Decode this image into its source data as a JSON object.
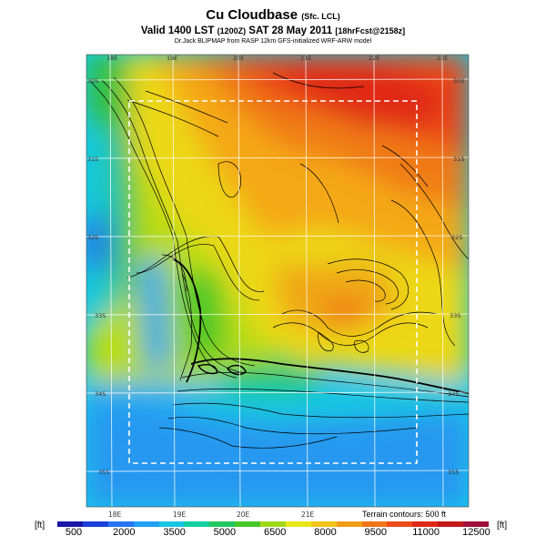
{
  "header": {
    "title": "Cu Cloudbase",
    "title_suffix": "(Sfc. LCL)",
    "subtitle_main": "Valid 1400 LST",
    "subtitle_utc": "(1200Z)",
    "subtitle_date": "SAT 28 May 2011",
    "subtitle_forecast": "[18hrFcst@2158z]",
    "credit": "Dr.Jack BLIPMAP from RASP 12km GFS-initialized WRF-ARW model"
  },
  "map": {
    "top_longitudes": [
      "18E",
      "19E",
      "20E",
      "21E",
      "22E",
      "23E"
    ],
    "bottom_longitudes": [
      "18E",
      "19E",
      "20E",
      "21E"
    ],
    "left_latitudes": [
      "30S",
      "31S",
      "32S",
      "33S",
      "34S",
      "35S"
    ],
    "right_latitudes": [
      "30S",
      "31S",
      "32S",
      "33S",
      "34S",
      "35S"
    ],
    "terrain_note": "Terrain contours: 500 ft"
  },
  "legend": {
    "unit_left": "[ft]",
    "unit_right": "[ft]",
    "tick_labels": [
      "500",
      "2000",
      "3500",
      "5000",
      "6500",
      "8000",
      "9500",
      "11000",
      "12500"
    ],
    "colors": [
      "#1818a8",
      "#1c40dc",
      "#2874f0",
      "#20a0f4",
      "#18c4e0",
      "#10d0a0",
      "#20c860",
      "#48c828",
      "#a0d818",
      "#e8e818",
      "#f0c418",
      "#f09c18",
      "#f07418",
      "#ec4c18",
      "#e02818",
      "#c41818",
      "#a01038"
    ]
  }
}
